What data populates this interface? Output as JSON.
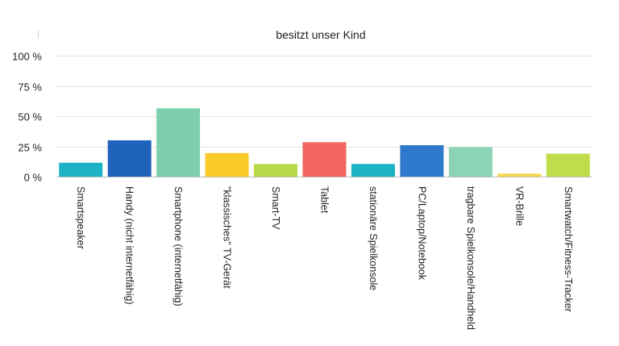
{
  "chart_data": {
    "type": "bar",
    "title": "besitzt unser Kind",
    "xlabel": "",
    "ylabel": "",
    "ylim": [
      0,
      100
    ],
    "yticks": [
      "0 %",
      "25 %",
      "50 %",
      "75 %",
      "100 %"
    ],
    "ytick_values": [
      0,
      25,
      50,
      75,
      100
    ],
    "grid": true,
    "legend": "none",
    "categories": [
      "Smartspeaker",
      "Handy (nicht internetfähig)",
      "Smartphone (internetfähig)",
      "\"klassisches\" TV-Gerät",
      "Smart-TV",
      "Tablet",
      "stationäre Spielkonsole",
      "PC/Laptop/Notebook",
      "tragbare Spielkonsole/Handheld",
      "VR-Brille",
      "Smartwatch/Fitness-Tracker"
    ],
    "values": [
      11.5,
      30,
      56.5,
      19.5,
      10.5,
      28.5,
      10.5,
      26,
      24.5,
      2.5,
      19
    ],
    "colors": [
      "#1bb3c5",
      "#1f63bd",
      "#7fcfae",
      "#fccb2a",
      "#b8d84a",
      "#f26660",
      "#1bb3c5",
      "#2f79cc",
      "#8dd3b6",
      "#f7d84a",
      "#c0dc4b"
    ]
  }
}
